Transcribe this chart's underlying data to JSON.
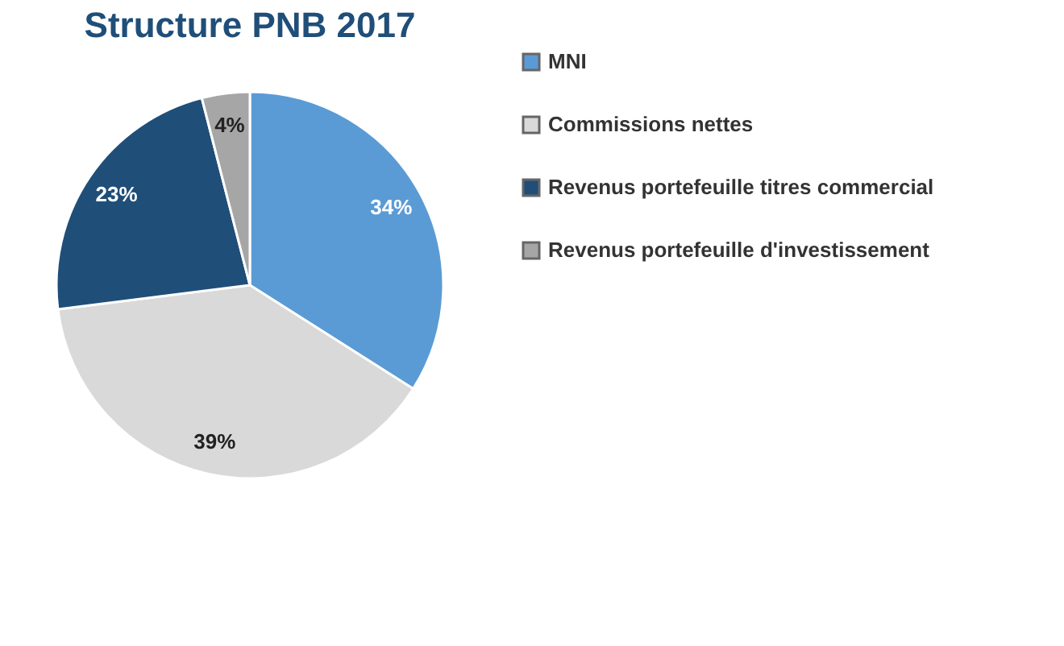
{
  "chart_data": {
    "type": "pie",
    "title": "Structure PNB 2017",
    "categories": [
      "MNI",
      "Commissions nettes",
      "Revenus portefeuille titres commercial",
      "Revenus portefeuille d'investissement"
    ],
    "values": [
      34,
      39,
      23,
      4
    ],
    "colors": [
      "#5b9bd5",
      "#d9d9d9",
      "#1f4e79",
      "#a6a6a6"
    ],
    "value_labels": [
      "34%",
      "39%",
      "23%",
      "4%"
    ],
    "legend": "right"
  }
}
